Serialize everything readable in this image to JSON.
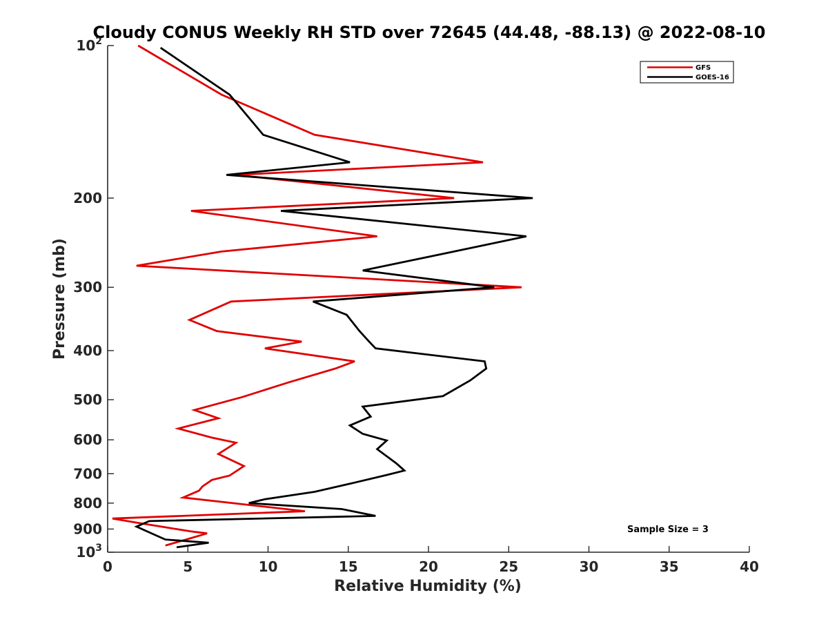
{
  "chart_data": {
    "type": "line",
    "title": "Cloudy CONUS Weekly RH STD over 72645 (44.48, -88.13) @ 2022-08-10",
    "xlabel": "Relative Humidity (%)",
    "ylabel": "Pressure (mb)",
    "xlim": [
      0,
      40
    ],
    "ylim": [
      100,
      1000
    ],
    "yscale": "log",
    "y_reversed": true,
    "grid": false,
    "legend_position": "top-right",
    "x_ticks": [
      "0",
      "5",
      "10",
      "15",
      "20",
      "25",
      "30",
      "35",
      "40"
    ],
    "x_tick_values": [
      0,
      5,
      10,
      15,
      20,
      25,
      30,
      35,
      40
    ],
    "y_tick_values": [
      100,
      200,
      300,
      400,
      500,
      600,
      700,
      800,
      900,
      1000
    ],
    "y_tick_labels": [
      {
        "base": "10",
        "exp": "2"
      },
      {
        "base": "200",
        "exp": ""
      },
      {
        "base": "300",
        "exp": ""
      },
      {
        "base": "400",
        "exp": ""
      },
      {
        "base": "500",
        "exp": ""
      },
      {
        "base": "600",
        "exp": ""
      },
      {
        "base": "700",
        "exp": ""
      },
      {
        "base": "800",
        "exp": ""
      },
      {
        "base": "900",
        "exp": ""
      },
      {
        "base": "10",
        "exp": "3"
      }
    ],
    "series": [
      {
        "name": "GFS",
        "color": "#e00000",
        "points": [
          [
            1.9,
            100
          ],
          [
            7.1,
            125
          ],
          [
            12.9,
            150
          ],
          [
            23.4,
            170
          ],
          [
            8.0,
            180
          ],
          [
            21.6,
            200
          ],
          [
            5.2,
            212
          ],
          [
            16.8,
            238
          ],
          [
            7.1,
            255
          ],
          [
            1.8,
            272
          ],
          [
            25.8,
            300
          ],
          [
            7.7,
            320
          ],
          [
            5.1,
            348
          ],
          [
            6.8,
            366
          ],
          [
            12.1,
            384
          ],
          [
            9.8,
            396
          ],
          [
            15.4,
            420
          ],
          [
            14.2,
            434
          ],
          [
            11.3,
            462
          ],
          [
            8.4,
            494
          ],
          [
            5.4,
            524
          ],
          [
            6.9,
            544
          ],
          [
            4.4,
            570
          ],
          [
            6.5,
            594
          ],
          [
            8.0,
            608
          ],
          [
            6.9,
            640
          ],
          [
            8.5,
            676
          ],
          [
            7.6,
            706
          ],
          [
            6.5,
            720
          ],
          [
            5.9,
            742
          ],
          [
            5.7,
            756
          ],
          [
            4.7,
            780
          ],
          [
            12.3,
            830
          ],
          [
            0.3,
            858
          ],
          [
            1.8,
            874
          ],
          [
            5.2,
            910
          ],
          [
            6.2,
            918
          ],
          [
            4.9,
            944
          ],
          [
            3.6,
            970
          ]
        ]
      },
      {
        "name": "GOES-16",
        "color": "#000000",
        "points": [
          [
            3.3,
            101
          ],
          [
            7.6,
            125
          ],
          [
            9.7,
            150
          ],
          [
            15.1,
            170
          ],
          [
            7.4,
            180
          ],
          [
            26.5,
            200
          ],
          [
            10.8,
            212
          ],
          [
            26.1,
            238
          ],
          [
            20.3,
            260
          ],
          [
            15.9,
            278
          ],
          [
            24.1,
            300
          ],
          [
            12.8,
            320
          ],
          [
            14.9,
            340
          ],
          [
            15.7,
            366
          ],
          [
            16.3,
            384
          ],
          [
            16.7,
            396
          ],
          [
            23.5,
            420
          ],
          [
            23.6,
            434
          ],
          [
            22.6,
            458
          ],
          [
            20.9,
            492
          ],
          [
            15.9,
            516
          ],
          [
            16.4,
            540
          ],
          [
            15.1,
            562
          ],
          [
            15.9,
            584
          ],
          [
            17.4,
            602
          ],
          [
            16.8,
            626
          ],
          [
            18.0,
            668
          ],
          [
            18.5,
            690
          ],
          [
            17.4,
            704
          ],
          [
            15.3,
            730
          ],
          [
            12.9,
            760
          ],
          [
            9.8,
            786
          ],
          [
            8.8,
            800
          ],
          [
            14.6,
            822
          ],
          [
            16.7,
            848
          ],
          [
            2.6,
            868
          ],
          [
            1.8,
            890
          ],
          [
            2.2,
            902
          ],
          [
            2.8,
            920
          ],
          [
            3.6,
            944
          ],
          [
            6.3,
            958
          ],
          [
            4.3,
            978
          ]
        ]
      }
    ],
    "annotation": "Sample Size = 3"
  }
}
